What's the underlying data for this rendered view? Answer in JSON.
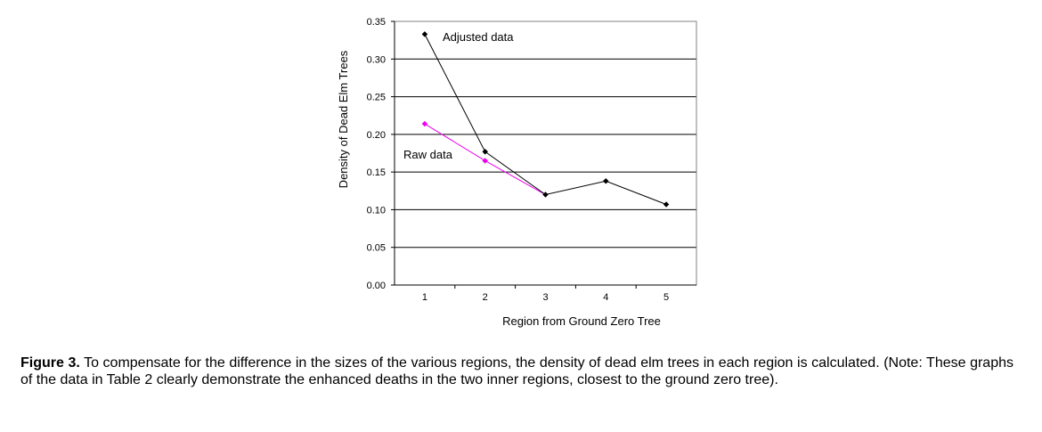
{
  "chart_data": {
    "type": "line",
    "xlabel": "Region from Ground Zero Tree",
    "ylabel": "Density of Dead Elm Trees",
    "xlim": [
      0.5,
      5.5
    ],
    "ylim": [
      0,
      0.35
    ],
    "xticks": [
      "1",
      "2",
      "3",
      "4",
      "5"
    ],
    "yticks": [
      "0.00",
      "0.05",
      "0.10",
      "0.15",
      "0.20",
      "0.25",
      "0.30",
      "0.35"
    ],
    "grid": "horizontal",
    "series": [
      {
        "name": "Adjusted data",
        "color": "#000000",
        "x": [
          1,
          2,
          3,
          4,
          5
        ],
        "y": [
          0.333,
          0.177,
          0.12,
          0.138,
          0.107
        ]
      },
      {
        "name": "Raw data",
        "color": "#ee00ee",
        "x": [
          1,
          2,
          3
        ],
        "y": [
          0.214,
          0.165,
          0.12
        ]
      }
    ]
  },
  "caption": {
    "label": "Figure 3.",
    "text": " To compensate for the difference in the sizes of the various regions, the density of dead elm trees in each region is calculated. (Note: These graphs of the data in Table 2 clearly demonstrate the enhanced deaths in the two inner regions, closest to the ground zero tree)."
  }
}
